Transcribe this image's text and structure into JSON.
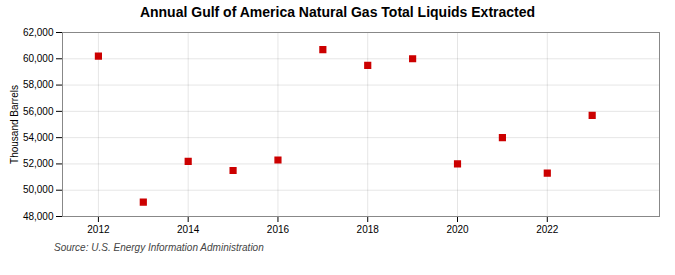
{
  "chart_data": {
    "type": "scatter",
    "title": "Annual Gulf of America Natural Gas Total Liquids Extracted",
    "ylabel": "Thousand Barrels",
    "annotations": [
      "Source: U.S. Energy Information Administration"
    ],
    "x": [
      2012,
      2013,
      2014,
      2015,
      2016,
      2017,
      2018,
      2019,
      2020,
      2021,
      2022,
      2023
    ],
    "values": [
      60200,
      49100,
      52200,
      51500,
      52300,
      60700,
      59500,
      60000,
      52000,
      54000,
      51300,
      55700
    ],
    "color": "#cc0000",
    "marker": "square",
    "xlim": [
      2011.2,
      2024.5
    ],
    "xticks": [
      2012,
      2014,
      2016,
      2018,
      2020,
      2022
    ],
    "ylim": [
      48000,
      62000
    ],
    "yticks": [
      {
        "value": 48000,
        "label": "48,000"
      },
      {
        "value": 50000,
        "label": "50,000"
      },
      {
        "value": 52000,
        "label": "52,000"
      },
      {
        "value": 54000,
        "label": "54,000"
      },
      {
        "value": 56000,
        "label": "56,000"
      },
      {
        "value": 58000,
        "label": "58,000"
      },
      {
        "value": 60000,
        "label": "60,000"
      },
      {
        "value": 62000,
        "label": "62,000"
      }
    ],
    "grid": true
  }
}
